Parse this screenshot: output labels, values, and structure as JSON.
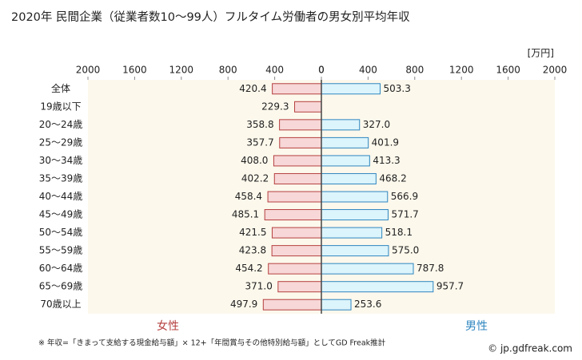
{
  "chart_data": {
    "type": "butterfly-bar",
    "title": "2020年 民間企業（従業者数10〜99人）フルタイム労働者の男女別平均年収",
    "unit": "[万円]",
    "categories": [
      "全体",
      "19歳以下",
      "20〜24歳",
      "25〜29歳",
      "30〜34歳",
      "35〜39歳",
      "40〜44歳",
      "45〜49歳",
      "50〜54歳",
      "55〜59歳",
      "60〜64歳",
      "65〜69歳",
      "70歳以上"
    ],
    "series": [
      {
        "name": "女性",
        "side": "left",
        "color": "#f7d7d7",
        "border": "#b5403f",
        "label_color": "#b5403f",
        "values": [
          420.4,
          229.3,
          358.8,
          357.7,
          408.0,
          402.2,
          458.4,
          485.1,
          421.5,
          423.8,
          454.2,
          371.0,
          497.9
        ],
        "value_labels": [
          "420.4",
          "229.3",
          "358.8",
          "357.7",
          "408.0",
          "402.2",
          "458.4",
          "485.1",
          "421.5",
          "423.8",
          "454.2",
          "371.0",
          "497.9"
        ]
      },
      {
        "name": "男性",
        "side": "right",
        "color": "#dcf4fb",
        "border": "#2f86c0",
        "label_color": "#2f86c0",
        "values": [
          503.3,
          null,
          327.0,
          401.9,
          413.3,
          468.2,
          566.9,
          571.7,
          518.1,
          575.0,
          787.8,
          957.7,
          253.6
        ],
        "value_labels": [
          "503.3",
          null,
          "327.0",
          "401.9",
          "413.3",
          "468.2",
          "566.9",
          "571.7",
          "518.1",
          "575.0",
          "787.8",
          "957.7",
          "253.6"
        ]
      }
    ],
    "xlim": [
      0,
      2000
    ],
    "xticks": [
      0,
      400,
      800,
      1200,
      1600,
      2000
    ],
    "footnote": "※ 年収=「きまって支給する現金給与額」× 12+「年間賞与その他特別給与額」としてGD Freak推計",
    "source": "© jp.gdfreak.com"
  }
}
